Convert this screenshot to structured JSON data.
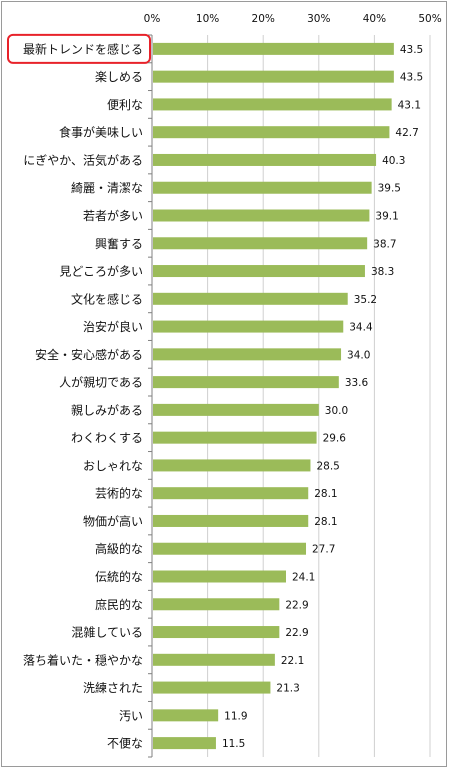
{
  "chart_data": {
    "type": "bar",
    "orientation": "horizontal",
    "title": "",
    "xlabel": "",
    "ylabel": "",
    "xlim": [
      0,
      50
    ],
    "x_ticks": [
      0,
      10,
      20,
      30,
      40,
      50
    ],
    "x_tick_labels": [
      "0%",
      "10%",
      "20%",
      "30%",
      "40%",
      "50%"
    ],
    "x_axis_position": "top",
    "grid": true,
    "legend": "none",
    "bar_color": "#9bbb59",
    "highlight_color": "#e8222a",
    "highlighted_category": "最新トレンドを感じる",
    "categories": [
      "最新トレンドを感じる",
      "楽しめる",
      "便利な",
      "食事が美味しい",
      "にぎやか、活気がある",
      "綺麗・清潔な",
      "若者が多い",
      "興奮する",
      "見どころが多い",
      "文化を感じる",
      "治安が良い",
      "安全・安心感がある",
      "人が親切である",
      "親しみがある",
      "わくわくする",
      "おしゃれな",
      "芸術的な",
      "物価が高い",
      "高級的な",
      "伝統的な",
      "庶民的な",
      "混雑している",
      "落ち着いた・穏やかな",
      "洗練された",
      "汚い",
      "不便な"
    ],
    "values": [
      43.5,
      43.5,
      43.1,
      42.7,
      40.3,
      39.5,
      39.1,
      38.7,
      38.3,
      35.2,
      34.4,
      34.0,
      33.6,
      30.0,
      29.6,
      28.5,
      28.1,
      28.1,
      27.7,
      24.1,
      22.9,
      22.9,
      22.1,
      21.3,
      11.9,
      11.5
    ],
    "value_labels": [
      "43.5",
      "43.5",
      "43.1",
      "42.7",
      "40.3",
      "39.5",
      "39.1",
      "38.7",
      "38.3",
      "35.2",
      "34.4",
      "34.0",
      "33.6",
      "30.0",
      "29.6",
      "28.5",
      "28.1",
      "28.1",
      "27.7",
      "24.1",
      "22.9",
      "22.9",
      "22.1",
      "21.3",
      "11.9",
      "11.5"
    ]
  }
}
